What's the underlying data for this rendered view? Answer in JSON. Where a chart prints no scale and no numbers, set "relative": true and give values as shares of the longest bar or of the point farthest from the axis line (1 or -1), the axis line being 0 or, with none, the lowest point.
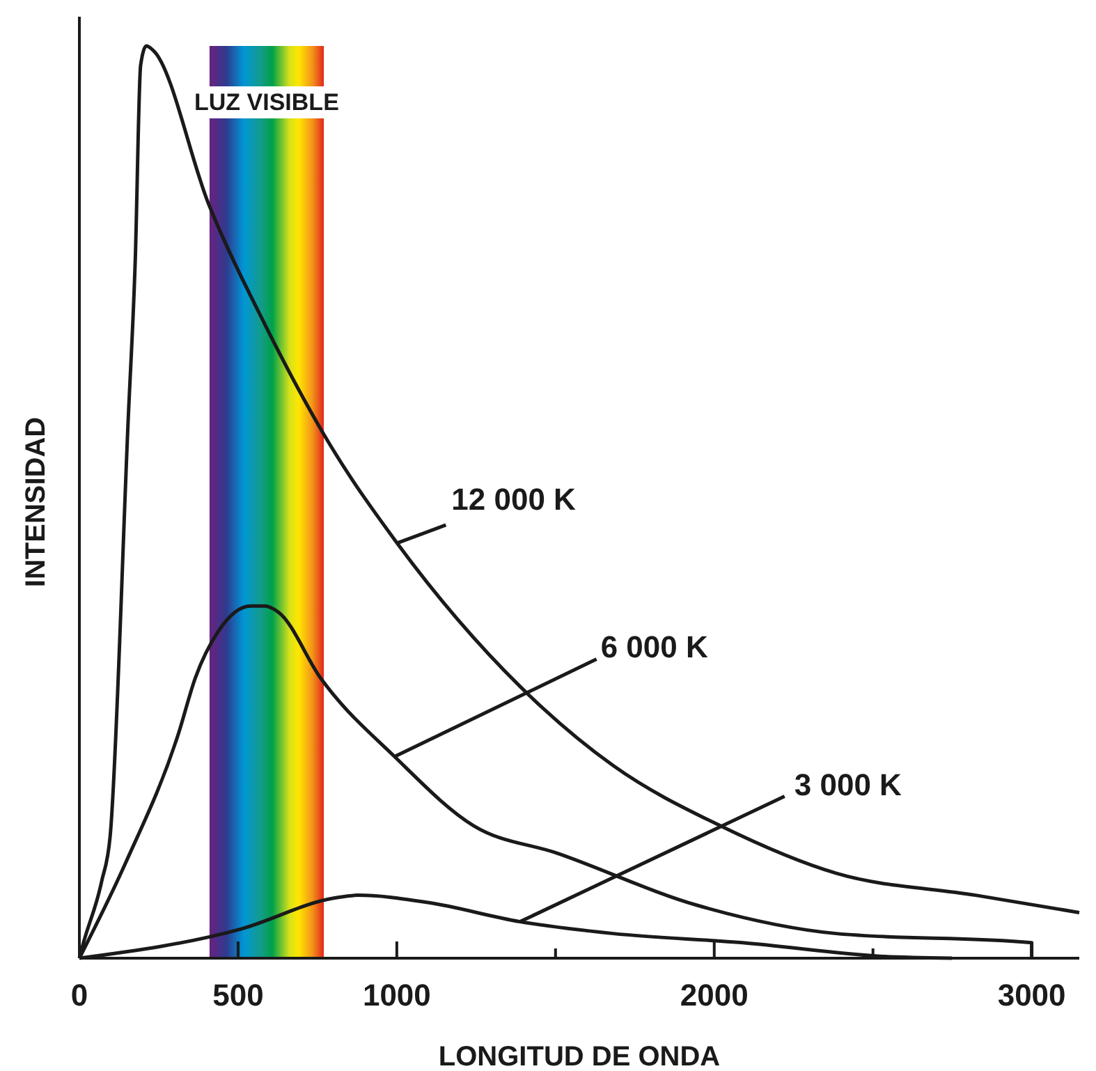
{
  "chart_data": {
    "type": "line",
    "xlabel": "LONGITUD DE ONDA",
    "ylabel": "INTENSIDAD",
    "relative": true,
    "xlim": [
      0,
      3150
    ],
    "xticks": [
      0,
      500,
      1000,
      {
        "value": 1500,
        "label": null
      },
      2000,
      {
        "value": 2500,
        "label": null
      },
      3000
    ],
    "line_style": "solid",
    "bands": [
      {
        "axis": "x",
        "from": 410,
        "to": 770,
        "label": "LUZ VISIBLE"
      }
    ],
    "series": [
      {
        "color": "#1a1a1a",
        "x": [
          0,
          13,
          70,
          97,
          154,
          176,
          193,
          211,
          233,
          408,
          584,
          791,
          1001,
          1388,
          1682,
          2020,
          2385,
          2824,
          3150
        ],
        "values": [
          0,
          0.017,
          0.084,
          0.134,
          0.592,
          0.765,
          0.979,
          1.0,
          0.995,
          0.826,
          0.695,
          0.562,
          0.455,
          0.298,
          0.211,
          0.145,
          0.093,
          0.069,
          0.05
        ]
      },
      {
        "color": "#1a1a1a",
        "x": [
          0,
          145,
          312,
          365,
          439,
          540,
          584,
          628,
          760,
          993,
          1243,
          1506,
          1946,
          2385,
          3000,
          3000
        ],
        "values": [
          0,
          0.104,
          0.246,
          0.307,
          0.359,
          0.386,
          0.386,
          0.379,
          0.307,
          0.221,
          0.145,
          0.115,
          0.058,
          0.027,
          0.017,
          0
        ]
      },
      {
        "color": "#1a1a1a",
        "x": [
          0,
          509,
          804,
          878,
          1098,
          1388,
          1682,
          2090,
          2530,
          2749
        ],
        "values": [
          0,
          0.032,
          0.066,
          0.069,
          0.061,
          0.04,
          0.027,
          0.017,
          0.002,
          0
        ]
      }
    ],
    "annotations": [
      {
        "text": "12 000 K",
        "x": 1001,
        "y": 0.455
      },
      {
        "text": "6 000 K",
        "x": 993,
        "y": 0.221
      },
      {
        "text": "3 000 K",
        "x": 1388,
        "y": 0.04
      }
    ]
  }
}
